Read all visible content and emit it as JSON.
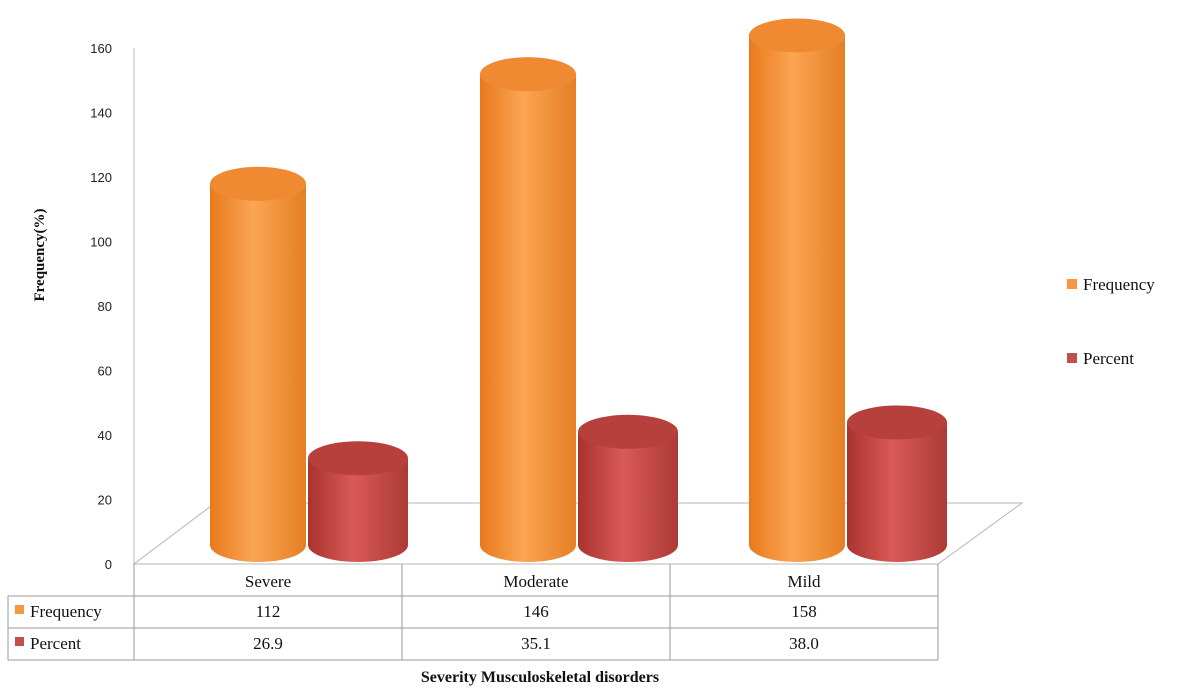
{
  "chart_data": {
    "type": "bar",
    "style": "3d-cylinder",
    "categories": [
      "Severe",
      "Moderate",
      "Mild"
    ],
    "series": [
      {
        "name": "Frequency",
        "values": [
          112,
          146,
          158
        ],
        "labels": [
          "112",
          "146",
          "158"
        ],
        "color": "#F79646"
      },
      {
        "name": "Percent",
        "values": [
          26.9,
          35.1,
          38.0
        ],
        "labels": [
          "26.9",
          "35.1",
          "38.0"
        ],
        "color": "#C0504D"
      }
    ],
    "ylabel": "Frequency(%)",
    "xlabel": "Severity Musculoskeletal disorders",
    "ylim": [
      0,
      160
    ],
    "yticks": [
      "0",
      "20",
      "40",
      "60",
      "80",
      "100",
      "120",
      "140",
      "160"
    ],
    "legend_position": "right",
    "data_table": true,
    "grid": false
  }
}
